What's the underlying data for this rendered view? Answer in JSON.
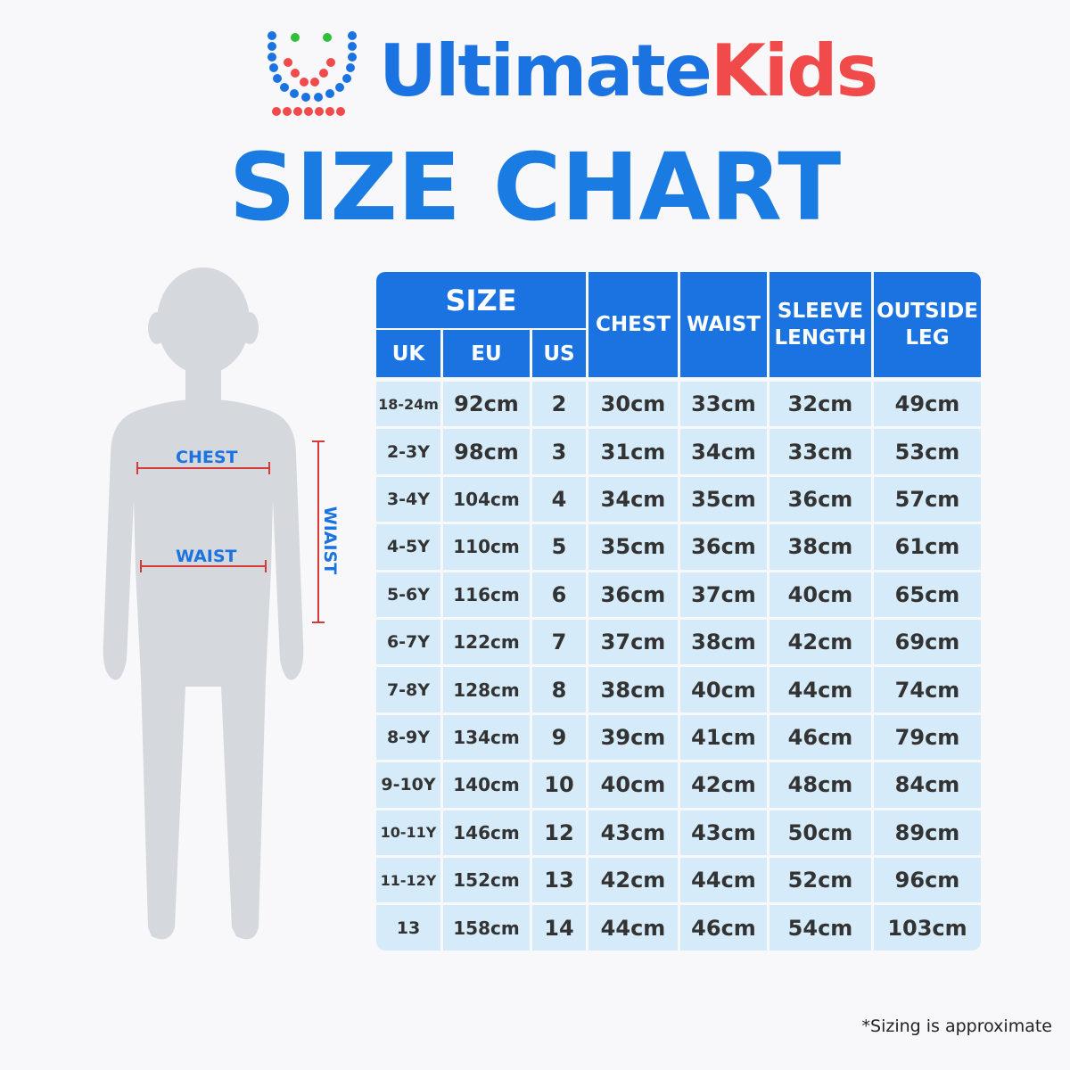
{
  "header": {
    "brand_first": "Ultimate",
    "brand_second": "Kids",
    "title": "SIZE CHART"
  },
  "figure": {
    "chest_label": "CHEST",
    "waist_label": "WAIST",
    "side_label": "WIAIST"
  },
  "table": {
    "group_header": "SIZE",
    "columns": [
      "UK",
      "EU",
      "US",
      "CHEST",
      "WAIST",
      "SLEEVE LENGTH",
      "OUTSIDE LEG"
    ],
    "rows": [
      [
        "18-24m",
        "92cm",
        "2",
        "30cm",
        "33cm",
        "32cm",
        "49cm"
      ],
      [
        "2-3Y",
        "98cm",
        "3",
        "31cm",
        "34cm",
        "33cm",
        "53cm"
      ],
      [
        "3-4Y",
        "104cm",
        "4",
        "34cm",
        "35cm",
        "36cm",
        "57cm"
      ],
      [
        "4-5Y",
        "110cm",
        "5",
        "35cm",
        "36cm",
        "38cm",
        "61cm"
      ],
      [
        "5-6Y",
        "116cm",
        "6",
        "36cm",
        "37cm",
        "40cm",
        "65cm"
      ],
      [
        "6-7Y",
        "122cm",
        "7",
        "37cm",
        "38cm",
        "42cm",
        "69cm"
      ],
      [
        "7-8Y",
        "128cm",
        "8",
        "38cm",
        "40cm",
        "44cm",
        "74cm"
      ],
      [
        "8-9Y",
        "134cm",
        "9",
        "39cm",
        "41cm",
        "46cm",
        "79cm"
      ],
      [
        "9-10Y",
        "140cm",
        "10",
        "40cm",
        "42cm",
        "48cm",
        "84cm"
      ],
      [
        "10-11Y",
        "146cm",
        "12",
        "43cm",
        "43cm",
        "50cm",
        "89cm"
      ],
      [
        "11-12Y",
        "152cm",
        "13",
        "42cm",
        "44cm",
        "52cm",
        "96cm"
      ],
      [
        "13",
        "158cm",
        "14",
        "44cm",
        "46cm",
        "54cm",
        "103cm"
      ]
    ]
  },
  "footnote": "*Sizing is approximate"
}
